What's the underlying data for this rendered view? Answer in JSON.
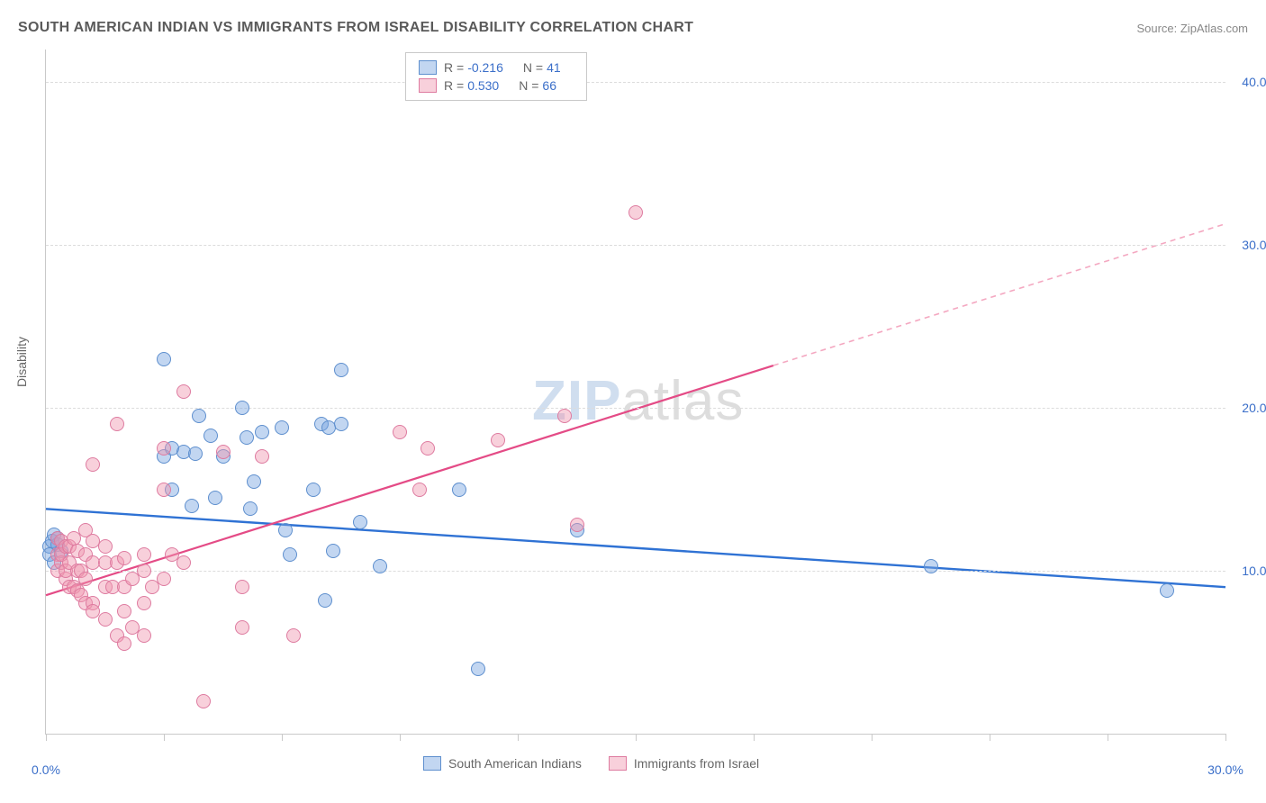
{
  "title": "SOUTH AMERICAN INDIAN VS IMMIGRANTS FROM ISRAEL DISABILITY CORRELATION CHART",
  "source": "Source: ZipAtlas.com",
  "watermark_zip": "ZIP",
  "watermark_atlas": "atlas",
  "y_axis_label": "Disability",
  "chart": {
    "type": "scatter",
    "x_domain": [
      0,
      30
    ],
    "y_domain": [
      0,
      42
    ],
    "x_ticks": [
      0,
      3,
      6,
      9,
      12,
      15,
      18,
      21,
      24,
      27,
      30
    ],
    "x_tick_labels": {
      "0": "0.0%",
      "30": "30.0%"
    },
    "y_gridlines": [
      10,
      20,
      30,
      40
    ],
    "y_tick_labels": {
      "10": "10.0%",
      "20": "20.0%",
      "30": "30.0%",
      "40": "40.0%"
    },
    "grid_color": "#dcdcdc",
    "axis_color": "#c9c9c9",
    "background_color": "#ffffff",
    "tick_label_color": "#3b6fc9",
    "marker_radius": 7,
    "series": [
      {
        "name": "South American Indians",
        "key": "blue",
        "fill": "rgba(120,165,225,0.45)",
        "stroke": "#5e8fce",
        "R": "-0.216",
        "N": "41",
        "trend": {
          "x1": 0,
          "y1": 13.8,
          "x2": 30,
          "y2": 9.0,
          "color": "#2f72d4",
          "width": 2.4
        },
        "points": [
          [
            0.1,
            11.5
          ],
          [
            0.1,
            11.0
          ],
          [
            0.15,
            11.8
          ],
          [
            0.2,
            12.2
          ],
          [
            0.2,
            10.5
          ],
          [
            0.3,
            11.6
          ],
          [
            0.3,
            12.0
          ],
          [
            0.4,
            11.2
          ],
          [
            3.0,
            23.0
          ],
          [
            3.0,
            17.0
          ],
          [
            3.2,
            15.0
          ],
          [
            3.2,
            17.5
          ],
          [
            3.5,
            17.3
          ],
          [
            3.7,
            14.0
          ],
          [
            3.8,
            17.2
          ],
          [
            3.9,
            19.5
          ],
          [
            4.2,
            18.3
          ],
          [
            4.3,
            14.5
          ],
          [
            4.5,
            17.0
          ],
          [
            5.0,
            20.0
          ],
          [
            5.1,
            18.2
          ],
          [
            5.2,
            13.8
          ],
          [
            5.3,
            15.5
          ],
          [
            5.5,
            18.5
          ],
          [
            6.0,
            18.8
          ],
          [
            6.1,
            12.5
          ],
          [
            6.2,
            11.0
          ],
          [
            6.8,
            15.0
          ],
          [
            7.0,
            19.0
          ],
          [
            7.1,
            8.2
          ],
          [
            7.2,
            18.8
          ],
          [
            7.3,
            11.2
          ],
          [
            7.5,
            22.3
          ],
          [
            7.5,
            19.0
          ],
          [
            8.0,
            13.0
          ],
          [
            8.5,
            10.3
          ],
          [
            10.5,
            15.0
          ],
          [
            11.0,
            4.0
          ],
          [
            13.5,
            12.5
          ],
          [
            22.5,
            10.3
          ],
          [
            28.5,
            8.8
          ]
        ]
      },
      {
        "name": "Immigrants from Israel",
        "key": "pink",
        "fill": "rgba(240,150,175,0.45)",
        "stroke": "#de7ba0",
        "R": "0.530",
        "N": "66",
        "trend_solid": {
          "x1": 0,
          "y1": 8.5,
          "x2": 18.5,
          "y2": 22.6,
          "color": "#e44b86",
          "width": 2.2
        },
        "trend_dashed": {
          "x1": 18.5,
          "y1": 22.6,
          "x2": 30,
          "y2": 31.3,
          "color": "#f4a8c1",
          "width": 1.6
        },
        "points": [
          [
            0.3,
            11.0
          ],
          [
            0.3,
            12.0
          ],
          [
            0.3,
            10.0
          ],
          [
            0.4,
            10.5
          ],
          [
            0.4,
            11.0
          ],
          [
            0.4,
            11.8
          ],
          [
            0.5,
            9.5
          ],
          [
            0.5,
            10.0
          ],
          [
            0.5,
            11.5
          ],
          [
            0.6,
            9.0
          ],
          [
            0.6,
            10.5
          ],
          [
            0.6,
            11.5
          ],
          [
            0.7,
            9.0
          ],
          [
            0.7,
            12.0
          ],
          [
            0.8,
            10.0
          ],
          [
            0.8,
            8.8
          ],
          [
            0.8,
            11.2
          ],
          [
            0.9,
            8.5
          ],
          [
            0.9,
            10.0
          ],
          [
            1.0,
            8.0
          ],
          [
            1.0,
            9.5
          ],
          [
            1.0,
            11.0
          ],
          [
            1.0,
            12.5
          ],
          [
            1.2,
            8.0
          ],
          [
            1.2,
            7.5
          ],
          [
            1.2,
            10.5
          ],
          [
            1.2,
            11.8
          ],
          [
            1.2,
            16.5
          ],
          [
            1.5,
            7.0
          ],
          [
            1.5,
            9.0
          ],
          [
            1.5,
            10.5
          ],
          [
            1.5,
            11.5
          ],
          [
            1.7,
            9.0
          ],
          [
            1.8,
            6.0
          ],
          [
            1.8,
            10.5
          ],
          [
            1.8,
            19.0
          ],
          [
            2.0,
            5.5
          ],
          [
            2.0,
            7.5
          ],
          [
            2.0,
            9.0
          ],
          [
            2.0,
            10.8
          ],
          [
            2.2,
            6.5
          ],
          [
            2.2,
            9.5
          ],
          [
            2.5,
            6.0
          ],
          [
            2.5,
            8.0
          ],
          [
            2.5,
            10.0
          ],
          [
            2.5,
            11.0
          ],
          [
            2.7,
            9.0
          ],
          [
            3.0,
            9.5
          ],
          [
            3.0,
            15.0
          ],
          [
            3.0,
            17.5
          ],
          [
            3.2,
            11.0
          ],
          [
            3.5,
            21.0
          ],
          [
            3.5,
            10.5
          ],
          [
            4.0,
            2.0
          ],
          [
            4.5,
            17.3
          ],
          [
            5.0,
            6.5
          ],
          [
            5.0,
            9.0
          ],
          [
            5.5,
            17.0
          ],
          [
            6.3,
            6.0
          ],
          [
            9.0,
            18.5
          ],
          [
            9.5,
            15.0
          ],
          [
            9.7,
            17.5
          ],
          [
            11.5,
            18.0
          ],
          [
            13.2,
            19.5
          ],
          [
            13.5,
            12.8
          ],
          [
            15.0,
            32.0
          ]
        ]
      }
    ]
  },
  "legend_bottom": [
    {
      "label": "South American Indians",
      "fill": "rgba(120,165,225,0.45)",
      "stroke": "#5e8fce"
    },
    {
      "label": "Immigrants from Israel",
      "fill": "rgba(240,150,175,0.45)",
      "stroke": "#de7ba0"
    }
  ]
}
